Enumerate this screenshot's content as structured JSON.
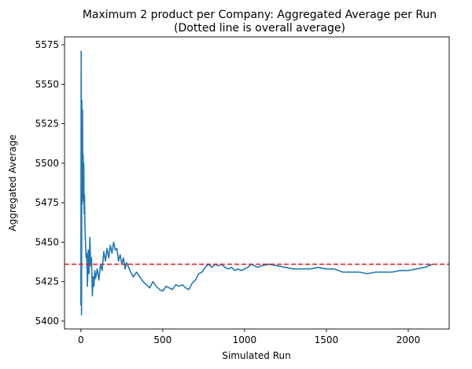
{
  "chart_data": {
    "type": "line",
    "title": "Maximum 2 product per Company: Aggregated Average per Run",
    "subtitle": "(Dotted line is overall average)",
    "xlabel": "Simulated Run",
    "ylabel": "Aggregated Average",
    "xlim": [
      -100,
      2250
    ],
    "ylim": [
      5395,
      5580
    ],
    "xticks": [
      0,
      500,
      1000,
      1500,
      2000
    ],
    "yticks": [
      5400,
      5425,
      5450,
      5475,
      5500,
      5525,
      5550,
      5575
    ],
    "grid": false,
    "reference_line": {
      "y": 5436,
      "style": "dashed",
      "color": "#d62728"
    },
    "series": [
      {
        "color": "#1f77b4",
        "x": [
          0,
          2,
          4,
          6,
          8,
          10,
          12,
          14,
          16,
          18,
          20,
          22,
          25,
          28,
          32,
          36,
          40,
          45,
          50,
          55,
          60,
          65,
          70,
          75,
          80,
          85,
          90,
          100,
          110,
          120,
          130,
          140,
          150,
          160,
          170,
          180,
          190,
          200,
          210,
          220,
          230,
          240,
          250,
          260,
          270,
          280,
          300,
          320,
          340,
          360,
          380,
          400,
          420,
          440,
          460,
          480,
          500,
          520,
          540,
          560,
          580,
          600,
          620,
          640,
          660,
          680,
          700,
          720,
          740,
          760,
          780,
          800,
          820,
          840,
          860,
          880,
          900,
          920,
          940,
          960,
          980,
          1000,
          1020,
          1040,
          1060,
          1080,
          1100,
          1150,
          1200,
          1250,
          1300,
          1350,
          1400,
          1450,
          1500,
          1550,
          1600,
          1650,
          1700,
          1750,
          1800,
          1850,
          1900,
          1950,
          2000,
          2050,
          2100,
          2150
        ],
        "y": [
          5410,
          5571,
          5404,
          5540,
          5474,
          5534,
          5480,
          5505,
          5476,
          5500,
          5468,
          5480,
          5460,
          5450,
          5440,
          5443,
          5422,
          5445,
          5430,
          5453,
          5435,
          5440,
          5416,
          5428,
          5422,
          5432,
          5427,
          5433,
          5426,
          5436,
          5432,
          5444,
          5438,
          5446,
          5440,
          5448,
          5443,
          5450,
          5445,
          5446,
          5438,
          5442,
          5436,
          5440,
          5433,
          5437,
          5432,
          5428,
          5431,
          5428,
          5425,
          5423,
          5421,
          5425,
          5422,
          5420,
          5419,
          5422,
          5421,
          5420,
          5423,
          5422,
          5423,
          5421,
          5420,
          5424,
          5426,
          5430,
          5431,
          5434,
          5436,
          5434,
          5436,
          5435,
          5436,
          5434,
          5433,
          5434,
          5432,
          5433,
          5432,
          5433,
          5434,
          5436,
          5435,
          5434,
          5435,
          5436,
          5435,
          5434,
          5433,
          5433,
          5433,
          5434,
          5433,
          5433,
          5431,
          5431,
          5431,
          5430,
          5431,
          5431,
          5431,
          5432,
          5432,
          5433,
          5434,
          5436
        ]
      }
    ]
  }
}
